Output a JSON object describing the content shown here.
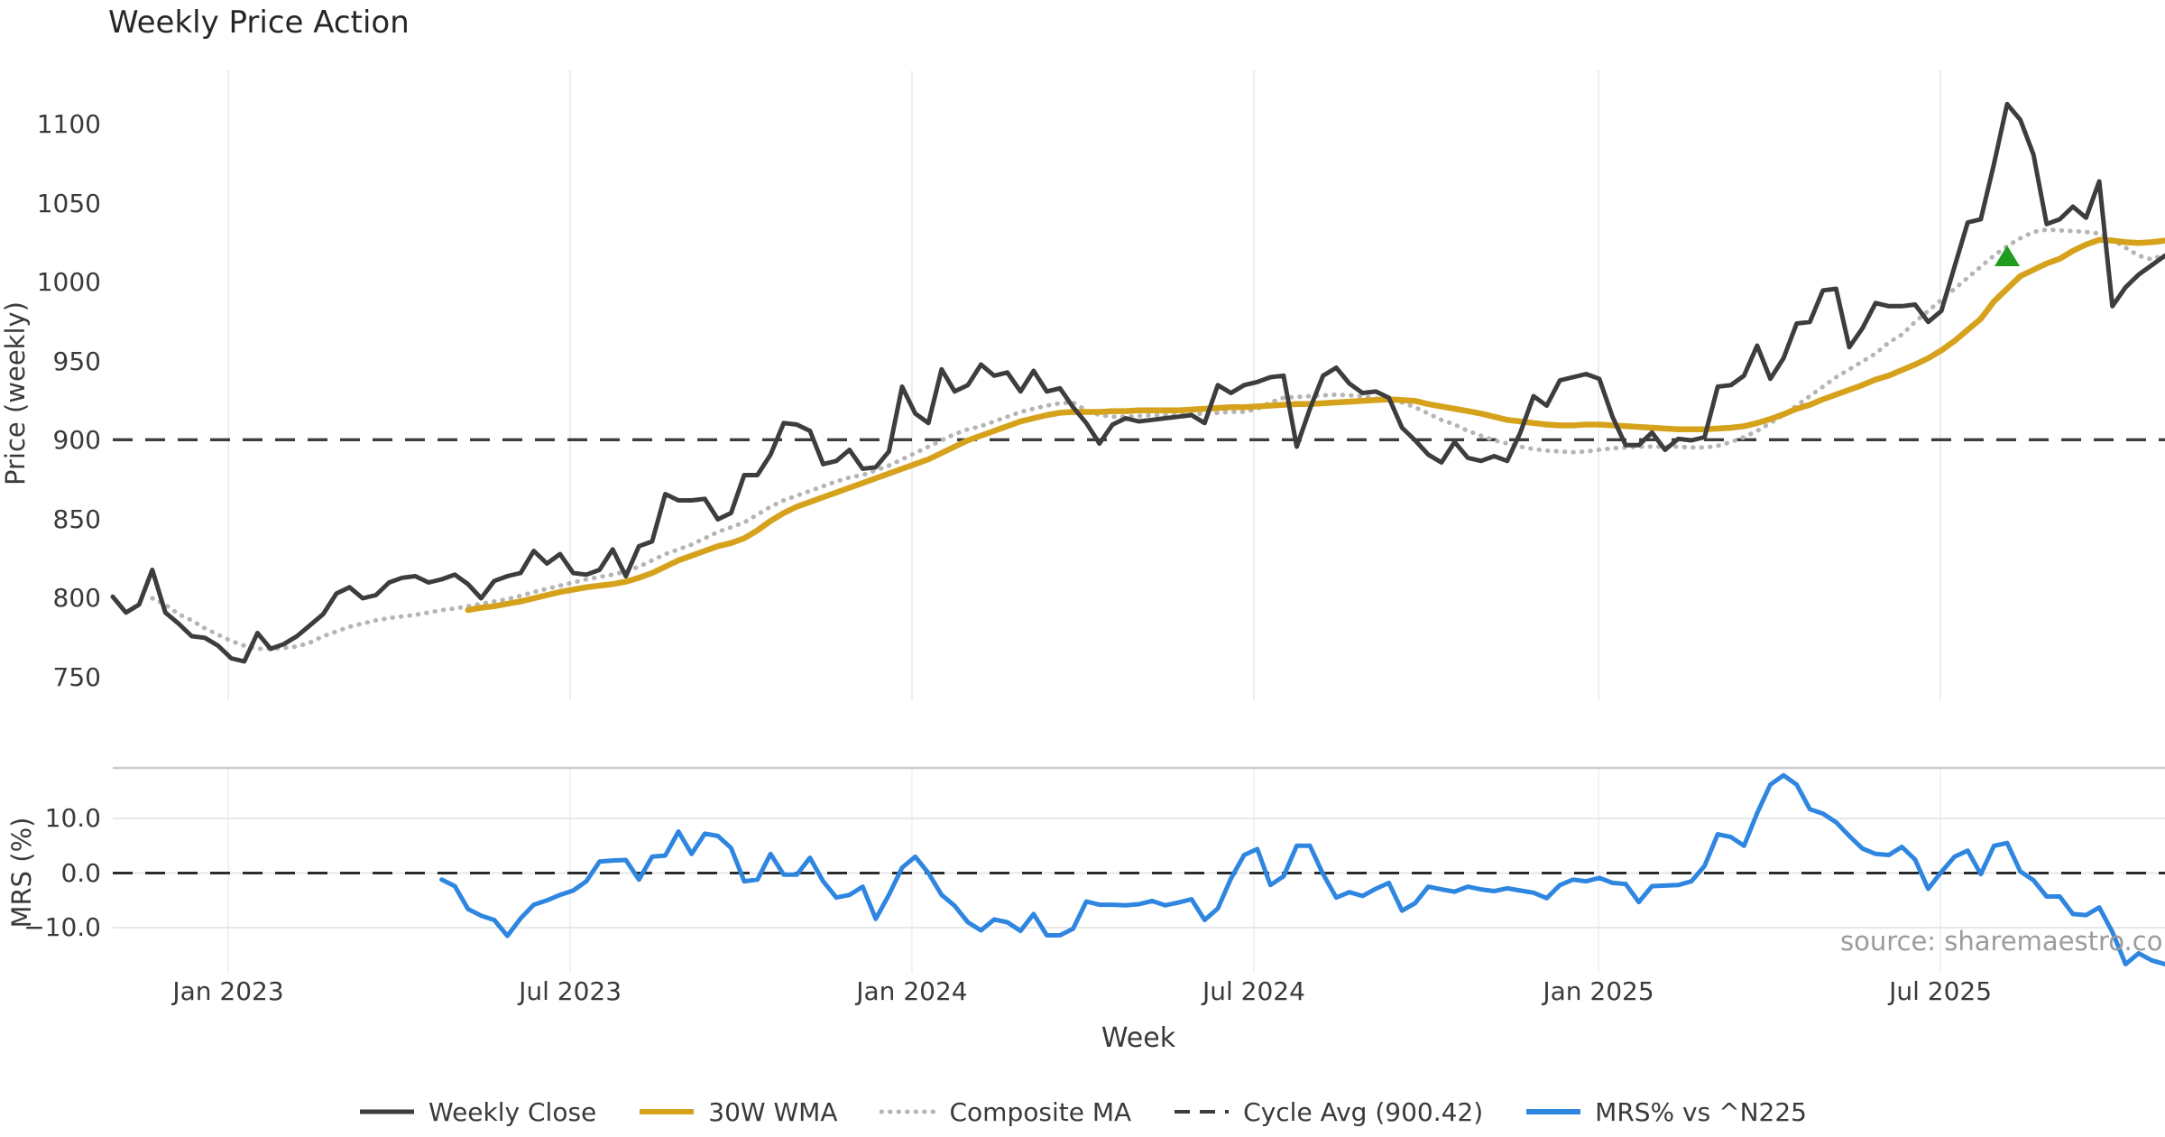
{
  "chart_data": {
    "type": "line",
    "title": "Weekly Price Action",
    "xlabel": "Week",
    "source_label": "source: sharemaestro.com",
    "x_ticks": [
      {
        "week": 8.78,
        "label": "Jan 2023"
      },
      {
        "week": 34.77,
        "label": "Jul 2023"
      },
      {
        "week": 60.75,
        "label": "Jan 2024"
      },
      {
        "week": 86.74,
        "label": "Jul 2024"
      },
      {
        "week": 112.94,
        "label": "Jan 2025"
      },
      {
        "week": 138.93,
        "label": "Jul 2025"
      }
    ],
    "n_weeks": 157,
    "panels": [
      {
        "name": "price",
        "ylabel": "Price (weekly)",
        "ylim": [
          735,
          1140
        ],
        "yticks": [
          {
            "v": 1100,
            "label": "1100"
          },
          {
            "v": 1050,
            "label": "1050"
          },
          {
            "v": 1000,
            "label": "1000"
          },
          {
            "v": 950,
            "label": "950"
          },
          {
            "v": 900,
            "label": "900"
          },
          {
            "v": 850,
            "label": "850"
          },
          {
            "v": 800,
            "label": "800"
          },
          {
            "v": 750,
            "label": "750"
          }
        ],
        "cycle_avg": 900.42,
        "marker": {
          "week": 144,
          "price": 1016,
          "shape": "triangle-up",
          "color": "#1f9c1f"
        },
        "series": [
          {
            "name": "Weekly Close",
            "color": "#3d3d3d",
            "style": "solid",
            "width": 5,
            "values": [
              801,
              791,
              796,
              818,
              791,
              784,
              776,
              775,
              770,
              762,
              760,
              778,
              768,
              771,
              776,
              783,
              790,
              803,
              807,
              800,
              802,
              810,
              813,
              814,
              810,
              812,
              815,
              809,
              800,
              811,
              814,
              816,
              830,
              822,
              828,
              816,
              815,
              818,
              831,
              814,
              833,
              836,
              866,
              862,
              862,
              863,
              850,
              854,
              878,
              878,
              891,
              911,
              910,
              906,
              885,
              887,
              894,
              882,
              883,
              893,
              934,
              917,
              911,
              945,
              931,
              935,
              948,
              941,
              943,
              931,
              944,
              931,
              933,
              921,
              911,
              898,
              910,
              914,
              912,
              913,
              914,
              915,
              916,
              911,
              935,
              930,
              935,
              937,
              940,
              941,
              896,
              920,
              941,
              946,
              936,
              930,
              931,
              927,
              908,
              900,
              891,
              886,
              899,
              889,
              887,
              890,
              887,
              905,
              928,
              922,
              938,
              940,
              942,
              939,
              915,
              897,
              897,
              905,
              894,
              901,
              900,
              902,
              934,
              935,
              941,
              960,
              939,
              952,
              974,
              975,
              995,
              996,
              959,
              971,
              987,
              985,
              985,
              986,
              975,
              982,
              1010,
              1038,
              1040,
              1075,
              1113,
              1103,
              1081,
              1037,
              1040,
              1048,
              1041,
              1064,
              985,
              997,
              1005,
              1011,
              1017
            ]
          },
          {
            "name": "30W WMA",
            "color": "#d6a21c",
            "style": "solid",
            "width": 6.5,
            "values": [
              null,
              null,
              null,
              null,
              null,
              null,
              null,
              null,
              null,
              null,
              null,
              null,
              null,
              null,
              null,
              null,
              null,
              null,
              null,
              null,
              null,
              null,
              null,
              null,
              null,
              null,
              null,
              792.5,
              794,
              795,
              796.5,
              798,
              800,
              802,
              804,
              805.5,
              807,
              808,
              809,
              810.5,
              813,
              816,
              820,
              824,
              827,
              830,
              833,
              835,
              838,
              843,
              849,
              854,
              858,
              861,
              864,
              867,
              870,
              873,
              876,
              879,
              882,
              885,
              888,
              892,
              896,
              900,
              903,
              906,
              909,
              912,
              914,
              916,
              917.5,
              918,
              918,
              918,
              918.5,
              918.5,
              919,
              919,
              919,
              919,
              919.5,
              920,
              920.5,
              921,
              921,
              921.5,
              922,
              922.5,
              923,
              923,
              923.5,
              924,
              924.5,
              925,
              925.5,
              926,
              925.5,
              925,
              923,
              921.5,
              920,
              918.5,
              917,
              915,
              913,
              912,
              911,
              910,
              909.5,
              909.5,
              910,
              910,
              909.5,
              909,
              908.5,
              908,
              907.5,
              907,
              907,
              907,
              907.5,
              908,
              909,
              911,
              913.5,
              916.5,
              920,
              922.5,
              926,
              929,
              932,
              935,
              938.5,
              941,
              944.5,
              948,
              952,
              957,
              963,
              970,
              977,
              988,
              996,
              1004,
              1008,
              1012,
              1015,
              1020,
              1024,
              1027,
              1026.5,
              1025.5,
              1025,
              1025.5,
              1026.5
            ]
          },
          {
            "name": "Composite MA",
            "color": "#b5b5b5",
            "style": "dotted",
            "width": 5,
            "values": [
              null,
              null,
              null,
              800,
              796,
              790,
              786,
              781,
              777,
              773,
              770,
              768,
              768,
              768.5,
              769.5,
              772,
              776,
              779,
              782,
              784,
              786,
              787.5,
              788.5,
              789.5,
              791,
              792.5,
              793.5,
              795,
              796.5,
              798,
              799.5,
              801.5,
              804,
              806,
              808,
              810,
              812,
              813.5,
              815,
              817,
              820,
              824,
              828,
              831,
              834,
              838,
              842,
              845,
              848,
              853,
              858,
              862,
              865,
              868,
              871,
              874,
              876.5,
              878,
              881,
              884,
              888,
              892,
              896,
              900,
              904,
              907,
              909,
              912,
              915,
              918,
              920,
              922,
              923.5,
              924,
              919,
              916,
              915,
              915,
              915.5,
              916,
              916,
              916,
              916.5,
              917,
              917.5,
              918,
              918,
              920,
              924,
              927,
              927.5,
              928,
              928.5,
              929,
              928.5,
              928,
              926.5,
              925.5,
              924,
              921,
              917,
              913,
              910,
              906,
              903,
              900,
              898,
              896,
              894.5,
              893.5,
              893,
              892.5,
              893,
              894,
              895,
              895.5,
              896,
              896,
              896,
              896,
              895.5,
              895.5,
              896.5,
              899,
              902,
              906,
              911,
              916,
              922,
              928,
              934,
              940,
              945,
              950,
              955,
              962,
              967,
              975,
              982,
              989,
              996,
              1003,
              1010,
              1017,
              1023,
              1028,
              1032,
              1033.5,
              1033,
              1032.5,
              1032,
              1031,
              1027,
              1022,
              1017,
              1014.5,
              1018
            ]
          },
          {
            "name": "Cycle Avg (900.42)",
            "color": "#3d3d3d",
            "style": "dashed",
            "width": 3.4,
            "constant": 900.42
          }
        ]
      },
      {
        "name": "mrs",
        "ylabel": "MRS (%)",
        "ylim": [
          -18.5,
          19.3
        ],
        "yticks": [
          {
            "v": 10,
            "label": "10.0"
          },
          {
            "v": 0,
            "label": "0.0"
          },
          {
            "v": -10,
            "label": "−10.0"
          }
        ],
        "zero_dashed": true,
        "series": [
          {
            "name": "MRS% vs ^N225",
            "color": "#2e86e0",
            "style": "solid",
            "width": 5,
            "values": [
              null,
              null,
              null,
              null,
              null,
              null,
              null,
              null,
              null,
              null,
              null,
              null,
              null,
              null,
              null,
              null,
              null,
              null,
              null,
              null,
              null,
              null,
              null,
              null,
              null,
              -1.2,
              -2.4,
              -6.6,
              -7.8,
              -8.6,
              -11.5,
              -8.3,
              -5.8,
              -5,
              -4,
              -3.2,
              -1.5,
              2.1,
              2.3,
              2.4,
              -1.2,
              3,
              3.2,
              7.6,
              3.5,
              7.2,
              6.8,
              4.6,
              -1.5,
              -1.2,
              3.5,
              -0.3,
              -0.3,
              2.8,
              -1.5,
              -4.5,
              -4,
              -2.5,
              -8.4,
              -4,
              1,
              3,
              0,
              -4,
              -6,
              -9,
              -10.5,
              -8.5,
              -9,
              -10.6,
              -7.5,
              -11.4,
              -11.4,
              -10.2,
              -5.2,
              -5.8,
              -5.8,
              -5.9,
              -5.7,
              -5.1,
              -5.9,
              -5.4,
              -4.8,
              -8.6,
              -6.5,
              -1,
              3.3,
              4.4,
              -2.2,
              -0.6,
              5,
              5,
              -0.2,
              -4.5,
              -3.5,
              -4.2,
              -2.9,
              -1.8,
              -6.9,
              -5.5,
              -2.5,
              -3,
              -3.4,
              -2.5,
              -3,
              -3.3,
              -2.8,
              -3.2,
              -3.6,
              -4.6,
              -2.2,
              -1.2,
              -1.5,
              -0.9,
              -1.8,
              -2,
              -5.3,
              -2.4,
              -2.3,
              -2.2,
              -1.5,
              1.3,
              7.1,
              6.6,
              5,
              11,
              16.2,
              17.9,
              16.2,
              11.7,
              10.9,
              9.3,
              6.8,
              4.5,
              3.5,
              3.3,
              4.8,
              2.5,
              -2.9,
              0.2,
              3,
              4.1,
              -0.2,
              5,
              5.5,
              0.3,
              -1.3,
              -4.3,
              -4.3,
              -7.5,
              -7.7,
              -6.3,
              -10.8,
              -16.7,
              -14.7,
              -16,
              -16.7
            ]
          }
        ]
      }
    ]
  },
  "legend": {
    "items": [
      {
        "label": "Weekly Close",
        "color": "#3d3d3d",
        "style": "solid",
        "width": 5
      },
      {
        "label": "30W WMA",
        "color": "#d6a21c",
        "style": "solid",
        "width": 6
      },
      {
        "label": "Composite MA",
        "color": "#b5b5b5",
        "style": "dotted",
        "width": 5
      },
      {
        "label": "Cycle Avg (900.42)",
        "color": "#3d3d3d",
        "style": "dashed",
        "width": 4
      },
      {
        "label": "MRS% vs ^N225",
        "color": "#2e86e0",
        "style": "solid",
        "width": 6
      }
    ]
  },
  "colors": {
    "grid": "#ededed",
    "grid_faint": "#f2f2f2",
    "spine": "#cccccc",
    "text": "#3a3a3a",
    "title": "#262626",
    "source": "#9b9b9b"
  }
}
